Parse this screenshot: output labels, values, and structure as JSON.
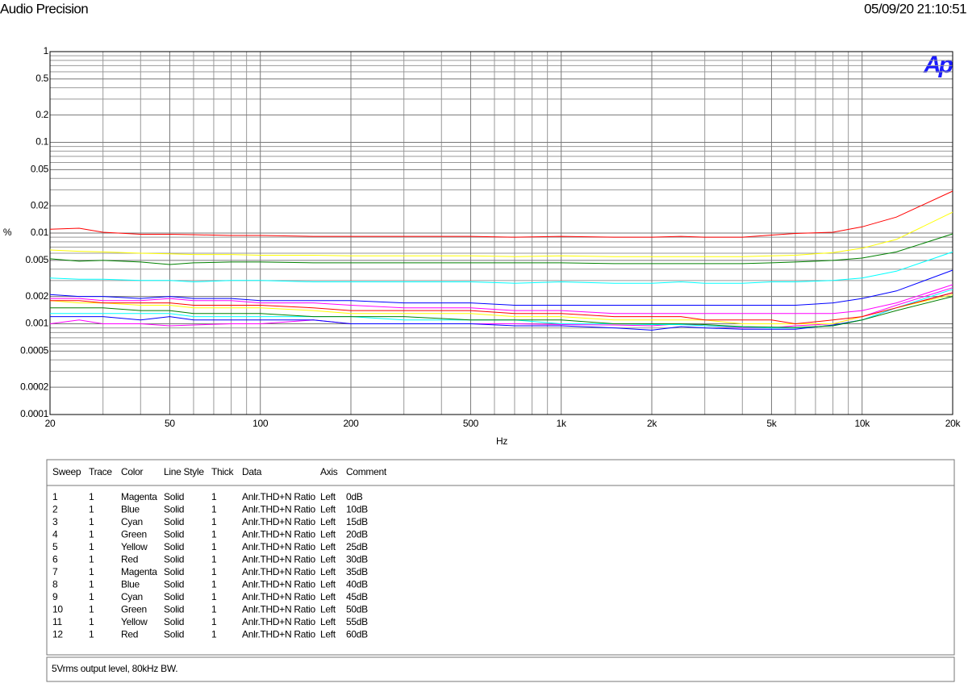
{
  "header": {
    "left": "Audio Precision",
    "right": "05/09/20 21:10:51",
    "logo": "Ap"
  },
  "chart_data": {
    "type": "line",
    "xscale": "log",
    "yscale": "log",
    "grid": true,
    "ylabel": "%",
    "xlabel": "Hz",
    "xlim": [
      20,
      20000
    ],
    "ylim": [
      0.0001,
      1
    ],
    "xticks": [
      20,
      50,
      100,
      200,
      500,
      {
        "value": 1000,
        "label": "1k"
      },
      {
        "value": 2000,
        "label": "2k"
      },
      {
        "value": 5000,
        "label": "5k"
      },
      {
        "value": 10000,
        "label": "10k"
      },
      {
        "value": 20000,
        "label": "20k"
      }
    ],
    "xminorticks": [
      30,
      40,
      60,
      70,
      80,
      90,
      300,
      400,
      600,
      700,
      800,
      900,
      3000,
      4000,
      6000,
      7000,
      8000,
      9000
    ],
    "yticks": [
      1,
      0.5,
      0.2,
      0.1,
      0.05,
      0.02,
      0.01,
      0.005,
      0.002,
      0.001,
      0.0005,
      0.0002,
      0.0001
    ],
    "yminorticks": [
      0.9,
      0.8,
      0.7,
      0.6,
      0.4,
      0.3,
      0.09,
      0.08,
      0.07,
      0.06,
      0.04,
      0.03,
      0.009,
      0.008,
      0.007,
      0.006,
      0.004,
      0.003,
      0.0009,
      0.0008,
      0.0007,
      0.0006,
      0.0004,
      0.0003
    ],
    "x": [
      20,
      25,
      30,
      40,
      50,
      60,
      80,
      100,
      150,
      200,
      300,
      500,
      700,
      1000,
      1500,
      2000,
      2500,
      3000,
      4000,
      5000,
      6000,
      8000,
      10000,
      13000,
      20000
    ],
    "legend_columns": [
      "Sweep",
      "Trace",
      "Color",
      "Line Style",
      "Thick",
      "Data",
      "Axis",
      "Comment"
    ],
    "series": [
      {
        "sweep": 1,
        "trace": 1,
        "color": "Magenta",
        "line_style": "Solid",
        "thick": 1,
        "data": "Anlr.THD+N Ratio",
        "axis": "Left",
        "name": "0dB",
        "values": [
          0.001,
          0.0011,
          0.001,
          0.001,
          0.00095,
          0.00097,
          0.001,
          0.001,
          0.0011,
          0.001,
          0.001,
          0.001,
          0.001,
          0.00098,
          0.00097,
          0.00095,
          0.001,
          0.00095,
          0.0009,
          0.0009,
          0.00095,
          0.001,
          0.0012,
          0.0016,
          0.0025
        ]
      },
      {
        "sweep": 2,
        "trace": 1,
        "color": "Blue",
        "line_style": "Solid",
        "thick": 1,
        "data": "Anlr.THD+N Ratio",
        "axis": "Left",
        "name": "10dB",
        "values": [
          0.0012,
          0.0012,
          0.0012,
          0.0011,
          0.0012,
          0.0011,
          0.0011,
          0.0011,
          0.0011,
          0.001,
          0.001,
          0.001,
          0.00095,
          0.00095,
          0.0009,
          0.00085,
          0.00093,
          0.0009,
          0.00087,
          0.00087,
          0.00087,
          0.00097,
          0.0011,
          0.0015,
          0.0022
        ]
      },
      {
        "sweep": 3,
        "trace": 1,
        "color": "Cyan",
        "line_style": "Solid",
        "thick": 1,
        "data": "Anlr.THD+N Ratio",
        "axis": "Left",
        "name": "15dB",
        "values": [
          0.0013,
          0.0013,
          0.0013,
          0.0013,
          0.0013,
          0.0012,
          0.0012,
          0.0012,
          0.0012,
          0.0012,
          0.0011,
          0.0011,
          0.0011,
          0.001,
          0.001,
          0.00098,
          0.00098,
          0.00095,
          0.00092,
          0.0009,
          0.0009,
          0.00095,
          0.0011,
          0.0015,
          0.0024
        ]
      },
      {
        "sweep": 4,
        "trace": 1,
        "color": "Green",
        "line_style": "Solid",
        "thick": 1,
        "data": "Anlr.THD+N Ratio",
        "axis": "Left",
        "name": "20dB",
        "values": [
          0.0015,
          0.0015,
          0.0015,
          0.0014,
          0.0014,
          0.0013,
          0.0013,
          0.0013,
          0.0012,
          0.0012,
          0.0012,
          0.0011,
          0.0011,
          0.0011,
          0.001,
          0.001,
          0.001,
          0.00098,
          0.00093,
          0.00092,
          0.00091,
          0.00095,
          0.0011,
          0.0014,
          0.002
        ]
      },
      {
        "sweep": 5,
        "trace": 1,
        "color": "Yellow",
        "line_style": "Solid",
        "thick": 1,
        "data": "Anlr.THD+N Ratio",
        "axis": "Left",
        "name": "25dB",
        "values": [
          0.0018,
          0.0017,
          0.0017,
          0.0016,
          0.0016,
          0.0015,
          0.0015,
          0.0015,
          0.0014,
          0.0013,
          0.0013,
          0.0013,
          0.0012,
          0.0012,
          0.0011,
          0.0011,
          0.0011,
          0.0011,
          0.001,
          0.001,
          0.001,
          0.001,
          0.0012,
          0.0015,
          0.0021
        ]
      },
      {
        "sweep": 6,
        "trace": 1,
        "color": "Red",
        "line_style": "Solid",
        "thick": 1,
        "data": "Anlr.THD+N Ratio",
        "axis": "Left",
        "name": "30dB",
        "values": [
          0.0018,
          0.0018,
          0.0017,
          0.0017,
          0.0017,
          0.0016,
          0.0016,
          0.0016,
          0.0015,
          0.0014,
          0.0014,
          0.0014,
          0.0013,
          0.0013,
          0.0012,
          0.0012,
          0.0012,
          0.0011,
          0.0011,
          0.0011,
          0.001,
          0.0011,
          0.0012,
          0.0015,
          0.0022
        ]
      },
      {
        "sweep": 7,
        "trace": 1,
        "color": "Magenta",
        "line_style": "Solid",
        "thick": 1,
        "data": "Anlr.THD+N Ratio",
        "axis": "Left",
        "name": "35dB",
        "values": [
          0.0019,
          0.0019,
          0.0018,
          0.0018,
          0.0019,
          0.0018,
          0.0018,
          0.0017,
          0.0017,
          0.0016,
          0.0015,
          0.0015,
          0.0014,
          0.0014,
          0.0013,
          0.0013,
          0.0013,
          0.0013,
          0.0013,
          0.0013,
          0.0013,
          0.0013,
          0.0014,
          0.0017,
          0.0027
        ]
      },
      {
        "sweep": 8,
        "trace": 1,
        "color": "Blue",
        "line_style": "Solid",
        "thick": 1,
        "data": "Anlr.THD+N Ratio",
        "axis": "Left",
        "name": "40dB",
        "values": [
          0.0021,
          0.002,
          0.002,
          0.0019,
          0.002,
          0.0019,
          0.0019,
          0.0018,
          0.0018,
          0.0018,
          0.0017,
          0.0017,
          0.0016,
          0.0016,
          0.0016,
          0.0016,
          0.0016,
          0.0016,
          0.0016,
          0.0016,
          0.0016,
          0.0017,
          0.0019,
          0.0023,
          0.0039
        ]
      },
      {
        "sweep": 9,
        "trace": 1,
        "color": "Cyan",
        "line_style": "Solid",
        "thick": 1,
        "data": "Anlr.THD+N Ratio",
        "axis": "Left",
        "name": "45dB",
        "values": [
          0.0032,
          0.0031,
          0.0031,
          0.003,
          0.003,
          0.0029,
          0.003,
          0.003,
          0.0029,
          0.0029,
          0.0029,
          0.0029,
          0.0028,
          0.0029,
          0.0028,
          0.0028,
          0.0029,
          0.0028,
          0.0028,
          0.0029,
          0.0029,
          0.003,
          0.0032,
          0.0038,
          0.0062
        ]
      },
      {
        "sweep": 10,
        "trace": 1,
        "color": "Green",
        "line_style": "Solid",
        "thick": 1,
        "data": "Anlr.THD+N Ratio",
        "axis": "Left",
        "name": "50dB",
        "values": [
          0.0052,
          0.0049,
          0.005,
          0.0048,
          0.0045,
          0.0047,
          0.0048,
          0.0048,
          0.0047,
          0.0047,
          0.0047,
          0.0047,
          0.0047,
          0.0047,
          0.0046,
          0.0046,
          0.0046,
          0.0046,
          0.0046,
          0.0047,
          0.0048,
          0.005,
          0.0053,
          0.0062,
          0.0098
        ]
      },
      {
        "sweep": 11,
        "trace": 1,
        "color": "Yellow",
        "line_style": "Solid",
        "thick": 1,
        "data": "Anlr.THD+N Ratio",
        "axis": "Left",
        "name": "55dB",
        "values": [
          0.0065,
          0.0063,
          0.0062,
          0.006,
          0.0059,
          0.0058,
          0.0058,
          0.0057,
          0.0057,
          0.0056,
          0.0056,
          0.0056,
          0.0055,
          0.0056,
          0.0055,
          0.0055,
          0.0055,
          0.0055,
          0.0055,
          0.0056,
          0.0057,
          0.0061,
          0.0068,
          0.0085,
          0.017
        ]
      },
      {
        "sweep": 12,
        "trace": 1,
        "color": "Red",
        "line_style": "Solid",
        "thick": 1,
        "data": "Anlr.THD+N Ratio",
        "axis": "Left",
        "name": "60dB",
        "values": [
          0.011,
          0.0113,
          0.0102,
          0.0097,
          0.0097,
          0.0096,
          0.0094,
          0.0094,
          0.0092,
          0.0092,
          0.0092,
          0.0092,
          0.009,
          0.0092,
          0.009,
          0.009,
          0.0092,
          0.009,
          0.009,
          0.0095,
          0.0099,
          0.0102,
          0.0117,
          0.015,
          0.029
        ]
      }
    ],
    "comment": "5Vrms output level, 80kHz BW."
  }
}
